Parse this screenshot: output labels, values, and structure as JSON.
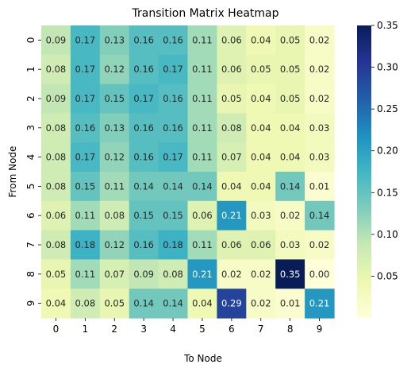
{
  "chart_data": {
    "type": "heatmap",
    "title": "Transition Matrix Heatmap",
    "xlabel": "To Node",
    "ylabel": "From Node",
    "x_categories": [
      "0",
      "1",
      "2",
      "3",
      "4",
      "5",
      "6",
      "7",
      "8",
      "9"
    ],
    "y_categories": [
      "0",
      "1",
      "2",
      "3",
      "4",
      "5",
      "6",
      "7",
      "8",
      "9"
    ],
    "values": [
      [
        0.09,
        0.17,
        0.13,
        0.16,
        0.16,
        0.11,
        0.06,
        0.04,
        0.05,
        0.02
      ],
      [
        0.08,
        0.17,
        0.12,
        0.16,
        0.17,
        0.11,
        0.06,
        0.05,
        0.05,
        0.02
      ],
      [
        0.09,
        0.17,
        0.15,
        0.17,
        0.16,
        0.11,
        0.05,
        0.04,
        0.05,
        0.02
      ],
      [
        0.08,
        0.16,
        0.13,
        0.16,
        0.16,
        0.11,
        0.08,
        0.04,
        0.04,
        0.03
      ],
      [
        0.08,
        0.17,
        0.12,
        0.16,
        0.17,
        0.11,
        0.07,
        0.04,
        0.04,
        0.03
      ],
      [
        0.08,
        0.15,
        0.11,
        0.14,
        0.14,
        0.14,
        0.04,
        0.04,
        0.14,
        0.01
      ],
      [
        0.06,
        0.11,
        0.08,
        0.15,
        0.15,
        0.06,
        0.21,
        0.03,
        0.02,
        0.14
      ],
      [
        0.08,
        0.18,
        0.12,
        0.16,
        0.18,
        0.11,
        0.06,
        0.06,
        0.03,
        0.02
      ],
      [
        0.05,
        0.11,
        0.07,
        0.09,
        0.08,
        0.21,
        0.02,
        0.02,
        0.35,
        0.0
      ],
      [
        0.04,
        0.08,
        0.05,
        0.14,
        0.14,
        0.04,
        0.29,
        0.02,
        0.01,
        0.21
      ]
    ],
    "colorscale": "YlGnBu",
    "vmin": 0.0,
    "vmax": 0.35,
    "colorbar_ticks": [
      "0.05",
      "0.10",
      "0.15",
      "0.20",
      "0.25",
      "0.30",
      "0.35"
    ],
    "colorbar_tick_values": [
      0.05,
      0.1,
      0.15,
      0.2,
      0.25,
      0.3,
      0.35
    ],
    "annotation_format": "2 decimals",
    "grid": false,
    "legend": "colorbar-right"
  }
}
